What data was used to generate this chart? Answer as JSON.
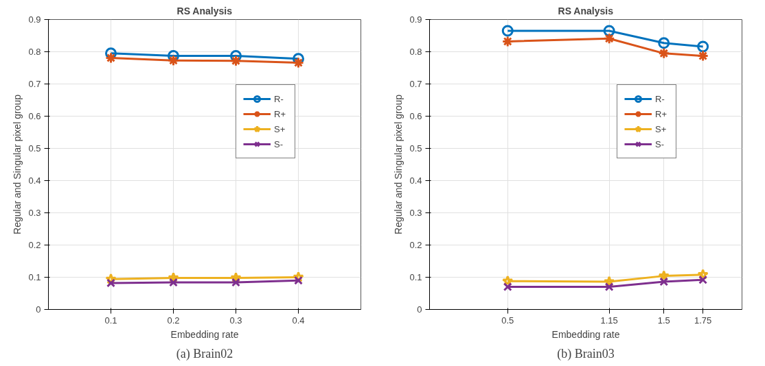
{
  "chart_data": [
    {
      "type": "line",
      "title": "RS Analysis",
      "xlabel": "Embedding rate",
      "ylabel": "Regular and Singular pixel group",
      "annotations": [
        "(a) Brain02"
      ],
      "x": [
        0.1,
        0.2,
        0.3,
        0.4
      ],
      "xlim": [
        0,
        0.5
      ],
      "xticks": [
        0.1,
        0.2,
        0.3,
        0.4
      ],
      "ylim": [
        0,
        0.9
      ],
      "yticks": [
        0,
        0.1,
        0.2,
        0.3,
        0.4,
        0.5,
        0.6,
        0.7,
        0.8,
        0.9
      ],
      "grid": true,
      "legend": "top right",
      "line_style": "solid",
      "series": [
        {
          "name": "R-",
          "color": "#0072bd",
          "marker": "circle",
          "values": [
            0.795,
            0.787,
            0.787,
            0.778
          ]
        },
        {
          "name": "R+",
          "color": "#d95319",
          "marker": "cross",
          "values": [
            0.781,
            0.773,
            0.772,
            0.766
          ]
        },
        {
          "name": "S+",
          "color": "#edb120",
          "marker": "star",
          "values": [
            0.094,
            0.098,
            0.098,
            0.1
          ]
        },
        {
          "name": "S-",
          "color": "#7e2f8e",
          "marker": "x",
          "values": [
            0.082,
            0.084,
            0.084,
            0.09
          ]
        }
      ]
    },
    {
      "type": "line",
      "title": "RS Analysis",
      "xlabel": "Embedding rate",
      "ylabel": "Regular and Singular pixel group",
      "annotations": [
        "(b) Brain03"
      ],
      "x": [
        0.5,
        1.15,
        1.5,
        1.75
      ],
      "xlim": [
        0,
        2
      ],
      "xticks": [
        0.5,
        1.15,
        1.5,
        1.75
      ],
      "ylim": [
        0,
        0.9
      ],
      "yticks": [
        0,
        0.1,
        0.2,
        0.3,
        0.4,
        0.5,
        0.6,
        0.7,
        0.8,
        0.9
      ],
      "grid": true,
      "legend": "top right",
      "line_style": "solid",
      "series": [
        {
          "name": "R-",
          "color": "#0072bd",
          "marker": "circle",
          "values": [
            0.865,
            0.865,
            0.827,
            0.816
          ]
        },
        {
          "name": "R+",
          "color": "#d95319",
          "marker": "cross",
          "values": [
            0.832,
            0.841,
            0.795,
            0.787
          ]
        },
        {
          "name": "S+",
          "color": "#edb120",
          "marker": "star",
          "values": [
            0.088,
            0.086,
            0.104,
            0.108
          ]
        },
        {
          "name": "S-",
          "color": "#7e2f8e",
          "marker": "x",
          "values": [
            0.07,
            0.07,
            0.086,
            0.092
          ]
        }
      ]
    }
  ]
}
